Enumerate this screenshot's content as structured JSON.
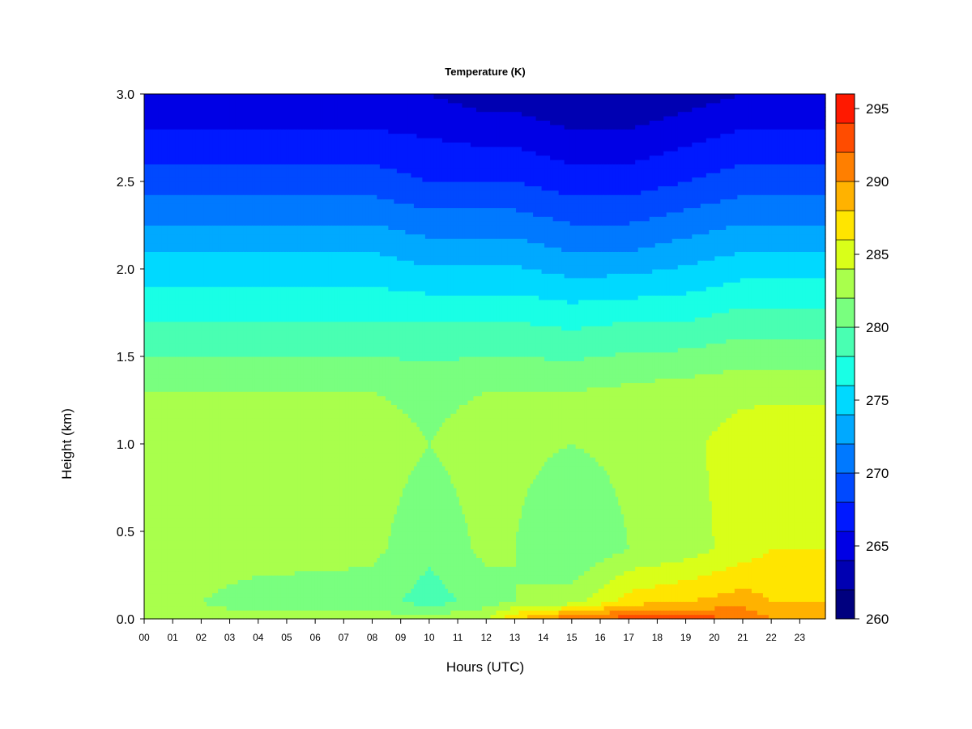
{
  "chart_data": {
    "type": "heatmap",
    "title": "Temperature (K)",
    "xlabel": "Hours (UTC)",
    "ylabel": "Height (km)",
    "x_ticks": [
      "00",
      "01",
      "02",
      "03",
      "04",
      "05",
      "06",
      "07",
      "08",
      "09",
      "10",
      "11",
      "12",
      "13",
      "14",
      "15",
      "16",
      "17",
      "18",
      "19",
      "20",
      "21",
      "22",
      "23"
    ],
    "x_range": [
      0,
      23.9
    ],
    "y_ticks": [
      "0.0",
      "0.5",
      "1.0",
      "1.5",
      "2.0",
      "2.5",
      "3.0"
    ],
    "y_range": [
      0,
      3.0
    ],
    "colorbar": {
      "ticks": [
        "260",
        "265",
        "270",
        "275",
        "280",
        "285",
        "290",
        "295"
      ],
      "range": [
        260,
        296
      ],
      "step": 2,
      "colors": [
        "#00007F",
        "#0000B2",
        "#0000E5",
        "#0019FF",
        "#0049FF",
        "#0079FF",
        "#00A9FF",
        "#00D9FF",
        "#19FFE5",
        "#49FFB2",
        "#79FF7F",
        "#A9FF4C",
        "#D9FF19",
        "#FFE500",
        "#FFB200",
        "#FF7F00",
        "#FF4C00",
        "#FF1900",
        "#E50000",
        "#B20000",
        "#7F0000"
      ]
    },
    "profiles": [
      {
        "hour": 0,
        "values": [
          282,
          283,
          283.5,
          283.2,
          282,
          278,
          274,
          269,
          264
        ]
      },
      {
        "hour": 4,
        "values": [
          283,
          281,
          283,
          283.2,
          282,
          278,
          274,
          269,
          264
        ]
      },
      {
        "hour": 8,
        "values": [
          283,
          281,
          282.5,
          283,
          282,
          278,
          274,
          269,
          264
        ]
      },
      {
        "hour": 10,
        "values": [
          283,
          279,
          280.5,
          282,
          281.5,
          278,
          273,
          268,
          264
        ]
      },
      {
        "hour": 12,
        "values": [
          284,
          281,
          282.5,
          283,
          282,
          278,
          273,
          268,
          263
        ]
      },
      {
        "hour": 13,
        "values": [
          288,
          282,
          282,
          282.5,
          282,
          278,
          273,
          268,
          263
        ]
      },
      {
        "hour": 15,
        "values": [
          292,
          283,
          280,
          282,
          282,
          277.5,
          272,
          267,
          262
        ]
      },
      {
        "hour": 17,
        "values": [
          293,
          287,
          282,
          282.5,
          282.5,
          278,
          272,
          267,
          262
        ]
      },
      {
        "hour": 19,
        "values": [
          293,
          288,
          283,
          283.5,
          283,
          278,
          273,
          268,
          263
        ]
      },
      {
        "hour": 21,
        "values": [
          292,
          289,
          285,
          285,
          283.5,
          279,
          274,
          269,
          264
        ]
      },
      {
        "hour": 22,
        "values": [
          290,
          288,
          286,
          285.5,
          283.5,
          279,
          274,
          269,
          264
        ]
      },
      {
        "hour": 23.9,
        "values": [
          290,
          288,
          286,
          285.5,
          283.5,
          279,
          274,
          269,
          264
        ]
      }
    ],
    "profile_heights": [
      0,
      0.1,
      0.4,
      1.0,
      1.3,
      1.7,
      2.1,
      2.5,
      3.0
    ]
  }
}
